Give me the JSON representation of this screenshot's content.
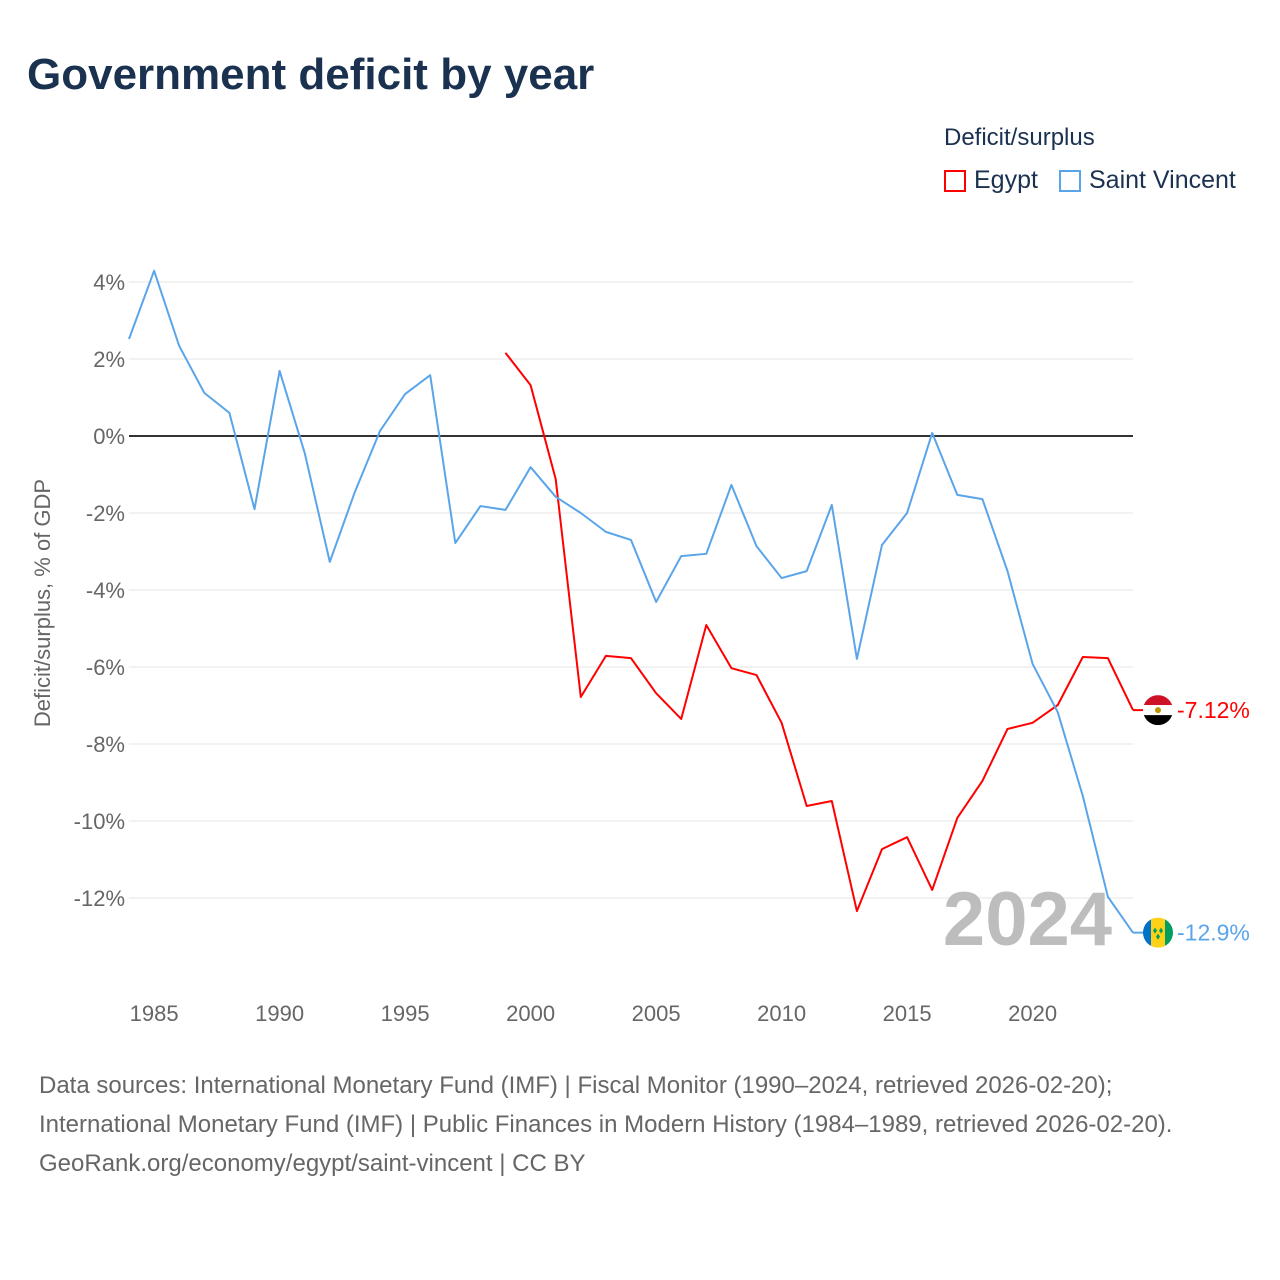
{
  "title": "Government deficit by year",
  "legend": {
    "title": "Deficit/surplus",
    "items": [
      {
        "name": "Egypt",
        "color": "#ff0000"
      },
      {
        "name": "Saint Vincent",
        "color": "#5aa5ea"
      }
    ]
  },
  "footer": {
    "sources": "Data sources: International Monetary Fund (IMF) | Fiscal Monitor (1990–2024, retrieved 2026-02-20); International Monetary Fund (IMF) | Public Finances in Modern History (1984–1989, retrieved 2026-02-20).",
    "credit": "GeoRank.org/economy/egypt/saint-vincent | CC BY"
  },
  "chart_data": {
    "type": "line",
    "title": "Government deficit by year",
    "xlabel": "",
    "ylabel": "Deficit/surplus, % of GDP",
    "xlim": [
      1984,
      2024
    ],
    "ylim": [
      -14,
      4.5
    ],
    "x_ticks": [
      1985,
      1990,
      1995,
      2000,
      2005,
      2010,
      2015,
      2020
    ],
    "y_ticks": [
      4,
      2,
      0,
      -2,
      -4,
      -6,
      -8,
      -10,
      -12
    ],
    "y_tick_labels": [
      "4%",
      "2%",
      "0%",
      "-2%",
      "-4%",
      "-6%",
      "-8%",
      "-10%",
      "-12%"
    ],
    "watermark_year": "2024",
    "series": [
      {
        "name": "Egypt",
        "color": "#ff0000",
        "end_label": "-7.12%",
        "x": [
          1999,
          2000,
          2001,
          2002,
          2003,
          2004,
          2005,
          2006,
          2007,
          2008,
          2009,
          2010,
          2011,
          2012,
          2013,
          2014,
          2015,
          2016,
          2017,
          2018,
          2019,
          2020,
          2021,
          2022,
          2023,
          2024
        ],
        "values": [
          2.16,
          1.32,
          -1.12,
          -6.78,
          -5.71,
          -5.77,
          -6.68,
          -7.35,
          -4.91,
          -6.03,
          -6.21,
          -7.45,
          -9.61,
          -9.48,
          -12.34,
          -10.73,
          -10.42,
          -11.79,
          -9.92,
          -8.96,
          -7.61,
          -7.45,
          -6.99,
          -5.74,
          -5.77,
          -7.12
        ]
      },
      {
        "name": "Saint Vincent",
        "color": "#5aa5ea",
        "end_label": "-12.9%",
        "x": [
          1984,
          1985,
          1986,
          1987,
          1988,
          1989,
          1990,
          1991,
          1992,
          1993,
          1994,
          1995,
          1996,
          1997,
          1998,
          1999,
          2000,
          2001,
          2002,
          2003,
          2004,
          2005,
          2006,
          2007,
          2008,
          2009,
          2010,
          2011,
          2012,
          2013,
          2014,
          2015,
          2016,
          2017,
          2018,
          2019,
          2020,
          2021,
          2022,
          2023,
          2024
        ],
        "values": [
          2.52,
          4.29,
          2.34,
          1.12,
          0.6,
          -1.9,
          1.69,
          -0.44,
          -3.27,
          -1.45,
          0.13,
          1.09,
          1.58,
          -2.78,
          -1.82,
          -1.92,
          -0.81,
          -1.58,
          -2.0,
          -2.49,
          -2.7,
          -4.31,
          -3.12,
          -3.06,
          -1.27,
          -2.86,
          -3.69,
          -3.51,
          -1.79,
          -5.79,
          -2.83,
          -2.0,
          0.08,
          -1.53,
          -1.64,
          -3.51,
          -5.92,
          -7.17,
          -9.35,
          -11.97,
          -12.9
        ]
      }
    ]
  }
}
